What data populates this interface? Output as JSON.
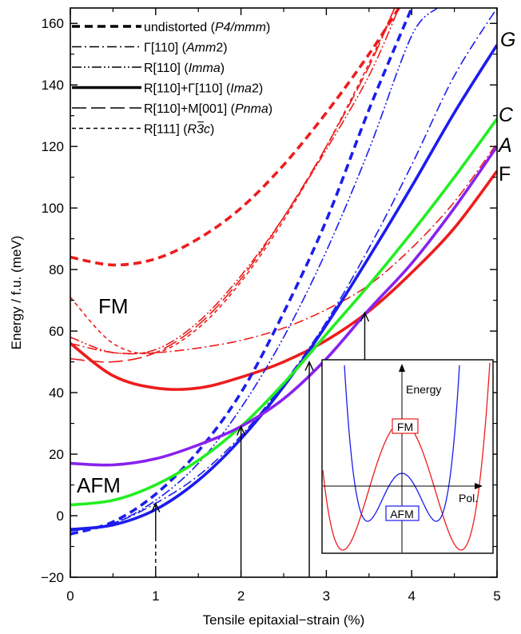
{
  "chart_data": {
    "type": "line",
    "xlabel": "Tensile epitaxial−strain (%)",
    "ylabel": "Energy / f.u. (meV)",
    "xlim": [
      0,
      5
    ],
    "ylim": [
      -20,
      165
    ],
    "x_ticks": [
      "0",
      "1",
      "2",
      "3",
      "4",
      "5"
    ],
    "y_ticks": [
      "−20",
      "0",
      "20",
      "40",
      "60",
      "80",
      "100",
      "120",
      "140",
      "160"
    ],
    "grid": false,
    "legend_position": "top-left",
    "legend": [
      {
        "style": "dashed-thick",
        "text": "undistorted (",
        "it": "P4/mmm",
        "tail": ")"
      },
      {
        "style": "dashdot",
        "text": "Γ[110] (",
        "it": "Amm",
        "tail": "2)"
      },
      {
        "style": "dashdotdot",
        "text": "R[110] (",
        "it": "Imma",
        "tail": ")"
      },
      {
        "style": "solid-thick",
        "text": "R[110]+Γ[110] (",
        "it": "Ima",
        "tail": "2)"
      },
      {
        "style": "longdash",
        "text": "R[110]+M[001] (",
        "it": "Pnma",
        "tail": ")"
      },
      {
        "style": "shortdash",
        "text": "R[111] (",
        "it": "R3c",
        "tail": ")"
      }
    ],
    "series": [
      {
        "color": "#ee1c1c",
        "style": "dashed-thick",
        "x": [
          0,
          0.5,
          1,
          1.5,
          2,
          2.5,
          3,
          3.5,
          3.85
        ],
        "y": [
          84,
          81.5,
          83.5,
          90,
          100,
          114,
          131,
          150,
          165
        ]
      },
      {
        "color": "#ee1c1c",
        "style": "dashdot",
        "x": [
          0,
          0.5,
          1,
          1.5,
          2,
          2.5,
          3,
          3.5,
          4,
          4.5,
          5
        ],
        "y": [
          56,
          53,
          53,
          54.5,
          57,
          61,
          67,
          75,
          87,
          102,
          121
        ]
      },
      {
        "color": "#ee1c1c",
        "style": "dashdotdot",
        "x": [
          0,
          0.5,
          1,
          1.5,
          2,
          2.5,
          3,
          3.5,
          3.85
        ],
        "y": [
          58,
          53,
          54,
          63,
          78,
          97,
          119,
          143,
          165
        ]
      },
      {
        "color": "#ee1c1c",
        "style": "longdash",
        "x": [
          0,
          0.5,
          1,
          1.5,
          2,
          2.5,
          3,
          3.5,
          3.8
        ],
        "y": [
          51,
          50,
          53,
          62,
          77,
          97,
          120,
          146,
          165
        ]
      },
      {
        "color": "#ee1c1c",
        "style": "shortdash",
        "x": [
          0,
          0.5,
          1,
          1.5,
          2,
          2.5,
          3,
          3.5,
          3.8
        ],
        "y": [
          71,
          56,
          53,
          61,
          76,
          96,
          120,
          147,
          165
        ]
      },
      {
        "color": "#ee1c1c",
        "style": "solid-thick",
        "x": [
          0,
          0.5,
          1,
          1.5,
          2,
          2.5,
          3,
          3.5,
          4,
          4.5,
          5
        ],
        "y": [
          56,
          45.5,
          41.5,
          41.5,
          45,
          50,
          57,
          66.5,
          79,
          93.5,
          112
        ]
      },
      {
        "color": "#1c1cee",
        "style": "dashed-thick",
        "x": [
          0,
          0.5,
          1,
          1.5,
          2,
          2.5,
          3,
          3.5,
          4
        ],
        "y": [
          -6,
          -2,
          7,
          21,
          40,
          66,
          96,
          132,
          165
        ]
      },
      {
        "color": "#1c1cee",
        "style": "dashdot",
        "x": [
          0,
          0.5,
          1,
          1.5,
          2,
          2.5,
          3,
          3.5,
          4,
          4.5,
          5
        ],
        "y": [
          -5,
          -2.5,
          4,
          13,
          26,
          43,
          63,
          87,
          114,
          143,
          165
        ]
      },
      {
        "color": "#1c1cee",
        "style": "dashdotdot",
        "x": [
          0,
          0.5,
          1,
          1.5,
          2,
          2.5,
          3,
          3.5,
          4,
          4.3
        ],
        "y": [
          -5,
          -2.5,
          5,
          17,
          35,
          58,
          86,
          119,
          156,
          165
        ]
      },
      {
        "color": "#1c1cee",
        "style": "solid-thick",
        "x": [
          0,
          0.5,
          1,
          1.5,
          2,
          2.5,
          3,
          3.5,
          4,
          4.5,
          5
        ],
        "y": [
          -4.5,
          -3,
          2,
          11.5,
          25,
          42,
          62,
          84,
          107,
          131,
          153
        ]
      },
      {
        "color": "#22ee22",
        "style": "solid-thick",
        "x": [
          0,
          0.5,
          1,
          1.5,
          2,
          2.5,
          3,
          3.5,
          4,
          4.5,
          5
        ],
        "y": [
          3.5,
          5,
          10,
          18,
          29,
          43,
          59,
          75,
          92,
          110,
          129
        ]
      },
      {
        "color": "#8822ee",
        "style": "solid-thick",
        "x": [
          0,
          0.5,
          1,
          1.5,
          2,
          2.5,
          3,
          3.5,
          4,
          4.5,
          5
        ],
        "y": [
          17,
          16.5,
          18.5,
          23,
          29,
          38,
          51,
          67,
          82,
          100,
          120
        ]
      }
    ],
    "curve_labels": [
      {
        "text": "G",
        "italic": true
      },
      {
        "text": "C",
        "italic": true
      },
      {
        "text": "A",
        "italic": true
      },
      {
        "text": "F",
        "italic": false
      }
    ],
    "annotations": [
      "FM",
      "AFM"
    ],
    "arrows": [
      {
        "x": 1.0,
        "y_from": -20,
        "y_to": 4,
        "dashed_part_to": -7,
        "style": "dashed-then-solid"
      },
      {
        "x": 2.0,
        "y_from": -20,
        "y_to": 29,
        "style": "solid"
      },
      {
        "x": 2.8,
        "y_from": -20,
        "y_to": 50,
        "style": "solid"
      },
      {
        "x": 3.45,
        "y_from": 42,
        "y_to": 66,
        "style": "solid"
      }
    ],
    "inset": {
      "ylabel": "Energy",
      "xlabel": "Pol.",
      "curves": [
        {
          "label": "FM",
          "color": "#ee1c1c"
        },
        {
          "label": "AFM",
          "color": "#1c1cee"
        }
      ]
    }
  }
}
